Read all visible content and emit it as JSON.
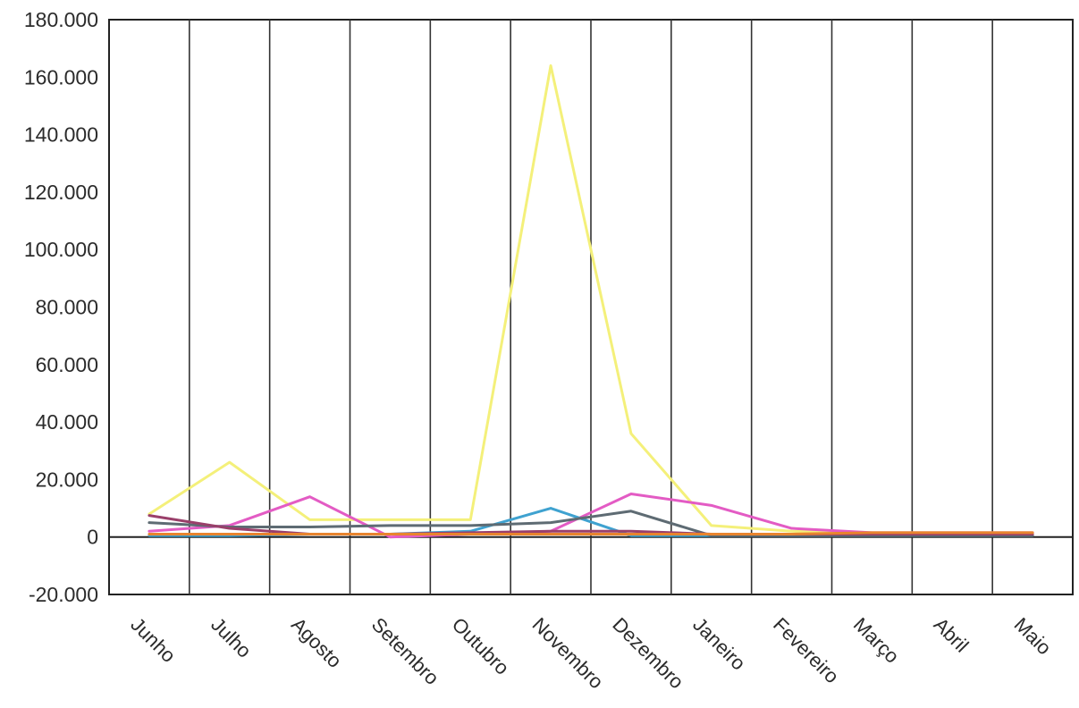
{
  "chart_data": {
    "type": "line",
    "categories": [
      "Junho",
      "Julho",
      "Agosto",
      "Setembro",
      "Outubro",
      "Novembro",
      "Dezembro",
      "Janeiro",
      "Fevereiro",
      "Março",
      "Abril",
      "Maio"
    ],
    "ylim": [
      -20000,
      180000
    ],
    "yticks": [
      180000,
      160000,
      140000,
      120000,
      100000,
      80000,
      60000,
      40000,
      20000,
      0,
      -20000
    ],
    "ytick_labels": [
      "180.000",
      "160.000",
      "140.000",
      "120.000",
      "100.000",
      "80.000",
      "60.000",
      "40.000",
      "20.000",
      "0",
      "-20.000"
    ],
    "xlabel": "",
    "ylabel": "",
    "grid": "vertical",
    "series": [
      {
        "color": "#f4f07a",
        "values": [
          8000,
          26000,
          6000,
          6000,
          6000,
          164000,
          36000,
          4000,
          2000,
          1500,
          1500,
          1500
        ]
      },
      {
        "color": "#e35bc4",
        "values": [
          2000,
          4000,
          14000,
          0,
          1000,
          2000,
          15000,
          11000,
          3000,
          1500,
          1500,
          1500
        ]
      },
      {
        "color": "#3fa2d0",
        "values": [
          500,
          500,
          1000,
          1000,
          2000,
          10000,
          500,
          500,
          500,
          500,
          500,
          500
        ]
      },
      {
        "color": "#5e6b73",
        "values": [
          5000,
          3500,
          3500,
          4000,
          4000,
          5000,
          9000,
          500,
          500,
          500,
          500,
          500
        ]
      },
      {
        "color": "#9a3f6a",
        "values": [
          7500,
          3000,
          1000,
          1000,
          1500,
          2000,
          2000,
          1000,
          1000,
          1000,
          1000,
          1000
        ]
      },
      {
        "color": "#e8842e",
        "values": [
          1000,
          1000,
          1000,
          1000,
          1000,
          1000,
          1000,
          1000,
          1000,
          1500,
          1500,
          1500
        ]
      }
    ]
  }
}
